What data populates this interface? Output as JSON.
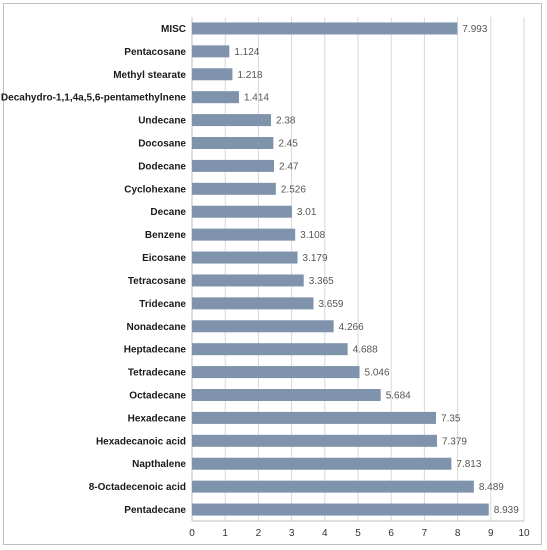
{
  "chart_data": {
    "type": "bar",
    "orientation": "horizontal",
    "title": "",
    "xlabel": "",
    "ylabel": "",
    "xlim": [
      0,
      10
    ],
    "x_ticks": [
      "0",
      "1",
      "2",
      "3",
      "4",
      "5",
      "6",
      "7",
      "8",
      "9",
      "10"
    ],
    "grid": "vertical",
    "legend": "none",
    "bar_color": "#7f93ad",
    "categories": [
      "MISC",
      "Pentacosane",
      "Methyl stearate",
      "Decahydro-1,1,4a,5,6-pentamethylnene",
      "Undecane",
      "Docosane",
      "Dodecane",
      "Cyclohexane",
      "Decane",
      "Benzene",
      "Eicosane",
      "Tetracosane",
      "Tridecane",
      "Nonadecane",
      "Heptadecane",
      "Tetradecane",
      "Octadecane",
      "Hexadecane",
      "Hexadecanoic acid",
      "Napthalene",
      "8-Octadecenoic acid",
      "Pentadecane"
    ],
    "values": [
      7.993,
      1.124,
      1.218,
      1.414,
      2.38,
      2.45,
      2.47,
      2.526,
      3.01,
      3.108,
      3.179,
      3.365,
      3.659,
      4.266,
      4.688,
      5.046,
      5.684,
      7.35,
      7.379,
      7.813,
      8.489,
      8.939
    ],
    "value_labels": [
      "7.993",
      "1.124",
      "1.218",
      "1.414",
      "2.38",
      "2.45",
      "2.47",
      "2.526",
      "3.01",
      "3.108",
      "3.179",
      "3.365",
      "3.659",
      "4.266",
      "4.688",
      "5.046",
      "5.684",
      "7.35",
      "7.379",
      "7.813",
      "8.489",
      "8.939"
    ]
  }
}
